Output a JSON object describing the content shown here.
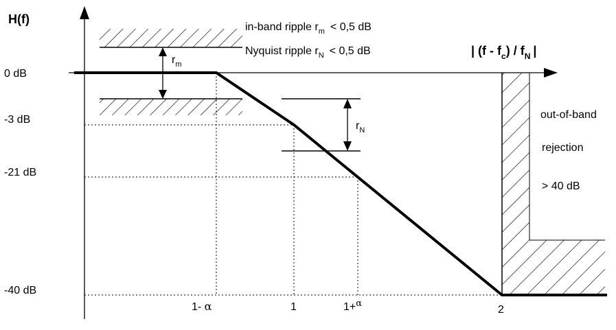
{
  "y_axis_label": "H(f)",
  "x_axis_label": {
    "pre": "| (f - f",
    "sub1": "c",
    "mid": ") / f",
    "sub2": "N",
    "post": "|"
  },
  "y_ticks": [
    "0 dB",
    "-3 dB",
    "-21 dB",
    "-40 dB"
  ],
  "x_ticks": {
    "one_minus_alpha": {
      "base": "1- ",
      "alpha": "α"
    },
    "one": "1",
    "one_plus_alpha": {
      "base": "1+",
      "alpha": "α"
    },
    "two": "2"
  },
  "spec": {
    "inband": {
      "pre": "in-band ripple r",
      "sub": "m",
      "post": "< 0,5 dB"
    },
    "nyquist": {
      "pre": "Nyquist ripple r",
      "sub": "N",
      "post": "< 0,5 dB"
    }
  },
  "r_m": {
    "base": "r",
    "sub": "m"
  },
  "r_n": {
    "base": "r",
    "sub": "N"
  },
  "rejection": {
    "line1": "out-of-band",
    "line2": "rejection",
    "line3": "> 40 dB"
  },
  "colors": {
    "line": "#000000",
    "background": "#ffffff"
  }
}
